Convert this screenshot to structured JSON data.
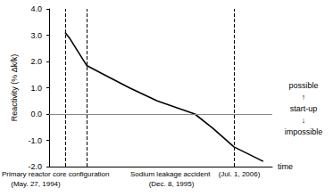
{
  "chart_data": {
    "type": "line",
    "y_label": "Reactivity (% Δk/k)",
    "x_label": "time",
    "x": [
      1994.4,
      1994.7,
      1995.94,
      1997,
      1999,
      2001,
      2003.7,
      2005,
      2006.5,
      2008.6
    ],
    "values": [
      3.1,
      2.9,
      1.85,
      1.55,
      1.0,
      0.5,
      0.0,
      -0.55,
      -1.25,
      -1.8
    ],
    "color": "#000000",
    "xlim": [
      1993.25,
      2009.25
    ],
    "ylim": [
      -2,
      4
    ],
    "yticks": [
      {
        "value": -2,
        "label": "-2.0"
      },
      {
        "value": -1,
        "label": "-1.0"
      },
      {
        "value": 0,
        "label": "0.0"
      },
      {
        "value": 1,
        "label": "1.0"
      },
      {
        "value": 2,
        "label": "2.0"
      },
      {
        "value": 3,
        "label": "3.0"
      },
      {
        "value": 4,
        "label": "4.0"
      }
    ],
    "tick_labels": "y",
    "grid": false,
    "hline": 0,
    "events": [
      {
        "x": 1994.4,
        "label": "Primary reactor core configuration",
        "date": "(May. 27, 1994)"
      },
      {
        "x": 1995.94,
        "label": "Sodium leakage accident",
        "date": "(Dec. 8, 1995)"
      },
      {
        "x": 2006.5,
        "date": "(Jul. 1, 2006)"
      }
    ],
    "side_labels": [
      "possible",
      "↑",
      "start-up",
      "↓",
      "impossible"
    ]
  }
}
